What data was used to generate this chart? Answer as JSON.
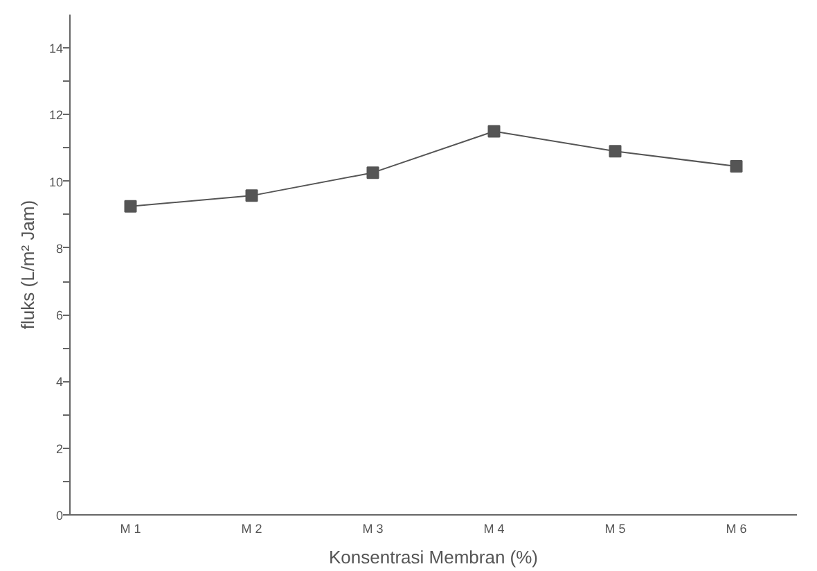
{
  "chart_data": {
    "type": "line",
    "xlabel": "Konsentrasi Membran (%)",
    "ylabel": "fluks (L/m² Jam)",
    "categories": [
      "M 1",
      "M 2",
      "M 3",
      "M 4",
      "M 5",
      "M 6"
    ],
    "series": [
      {
        "color": "#555555",
        "values": [
          9.25,
          9.57,
          10.26,
          11.5,
          10.9,
          10.45
        ]
      }
    ],
    "ylim": [
      0,
      15
    ],
    "yticks": [
      0,
      {
        "value": 1,
        "label": null
      },
      2,
      {
        "value": 3,
        "label": null
      },
      4,
      {
        "value": 5,
        "label": null
      },
      6,
      {
        "value": 7,
        "label": null
      },
      8,
      {
        "value": 9,
        "label": null
      },
      10,
      {
        "value": 11,
        "label": null
      },
      12,
      {
        "value": 13,
        "label": null
      },
      14
    ],
    "grid": false,
    "marker": "square",
    "line_style": "solid"
  }
}
